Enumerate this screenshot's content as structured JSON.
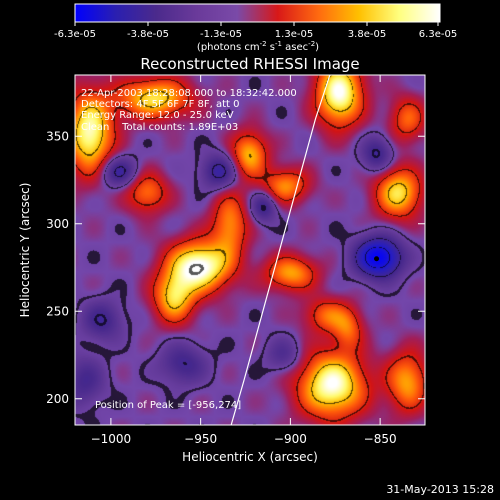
{
  "colorbar": {
    "tick_labels": [
      "-6.3e-05",
      "-3.8e-05",
      "-1.3e-05",
      "1.3e-05",
      "3.8e-05",
      "6.3e-05"
    ],
    "range": [
      -6.3e-05,
      6.3e-05
    ],
    "units_line": "(photons cm",
    "units_sup1": "-2",
    "units_mid": " s",
    "units_sup2": "-1",
    "units_end": " asec",
    "units_sup3": "-2",
    "units_close": ")",
    "colormap": [
      "#0000ff",
      "#2a1fb0",
      "#4b2a8c",
      "#6a3a9a",
      "#7a4aa8",
      "#d81818",
      "#ff6a10",
      "#ffc000",
      "#ffff80",
      "#ffffff"
    ]
  },
  "title": "Reconstructed RHESSI Image",
  "info": {
    "line1": "22-Apr-2003 18:28:08.000 to 18:32:42.000",
    "line2": "Detectors: 4F 5F 6F 7F 8F, att 0",
    "line3": "Energy Range: 12.0 - 25.0 keV",
    "line4": "Clean    Total counts: 1.89E+03"
  },
  "peak_label": "Position of Peak = [-956,274]",
  "footer_date": "31-May-2013 15:28",
  "chart_data": {
    "type": "heatmap",
    "title": "Reconstructed RHESSI Image",
    "xlabel": "Heliocentric X (arcsec)",
    "ylabel": "Heliocentric Y (arcsec)",
    "xlim": [
      -1020,
      -825
    ],
    "ylim": [
      185,
      385
    ],
    "x_ticks": [
      -1000,
      -950,
      -900,
      -850
    ],
    "x_tick_labels": [
      "−1000",
      "−950",
      "−900",
      "−850"
    ],
    "y_ticks": [
      200,
      250,
      300,
      350
    ],
    "y_tick_labels": [
      "200",
      "250",
      "300",
      "350"
    ],
    "peak_position": [
      -956,
      274
    ],
    "limb_curve": [
      [
        -933,
        185
      ],
      [
        -926,
        210
      ],
      [
        -918,
        240
      ],
      [
        -910,
        270
      ],
      [
        -902,
        300
      ],
      [
        -894,
        330
      ],
      [
        -886,
        360
      ],
      [
        -878,
        385
      ]
    ],
    "marker_point": [
      -852,
      280
    ],
    "sources": [
      {
        "x": -951,
        "y": 276,
        "v": 1.0,
        "sx": 12,
        "sy": 10
      },
      {
        "x": -965,
        "y": 258,
        "v": 0.7,
        "sx": 8,
        "sy": 10
      },
      {
        "x": -1012,
        "y": 352,
        "v": 0.9,
        "sx": 9,
        "sy": 16
      },
      {
        "x": -976,
        "y": 372,
        "v": 0.75,
        "sx": 14,
        "sy": 8
      },
      {
        "x": -903,
        "y": 322,
        "v": 0.55,
        "sx": 9,
        "sy": 7
      },
      {
        "x": -923,
        "y": 340,
        "v": 0.65,
        "sx": 7,
        "sy": 9
      },
      {
        "x": -873,
        "y": 375,
        "v": 0.95,
        "sx": 9,
        "sy": 13
      },
      {
        "x": -840,
        "y": 318,
        "v": 0.75,
        "sx": 9,
        "sy": 10
      },
      {
        "x": -835,
        "y": 360,
        "v": 0.45,
        "sx": 7,
        "sy": 9
      },
      {
        "x": -900,
        "y": 272,
        "v": 0.6,
        "sx": 10,
        "sy": 7
      },
      {
        "x": -880,
        "y": 248,
        "v": 0.45,
        "sx": 9,
        "sy": 7
      },
      {
        "x": -934,
        "y": 300,
        "v": 0.55,
        "sx": 7,
        "sy": 13
      },
      {
        "x": -980,
        "y": 318,
        "v": 0.5,
        "sx": 8,
        "sy": 8
      },
      {
        "x": -877,
        "y": 208,
        "v": 0.95,
        "sx": 13,
        "sy": 13
      },
      {
        "x": -835,
        "y": 210,
        "v": 0.6,
        "sx": 8,
        "sy": 12
      },
      {
        "x": -868,
        "y": 240,
        "v": 0.4,
        "sx": 6,
        "sy": 8
      },
      {
        "x": -1005,
        "y": 245,
        "v": -0.4,
        "sx": 8,
        "sy": 8
      },
      {
        "x": -1015,
        "y": 210,
        "v": -0.35,
        "sx": 8,
        "sy": 10
      },
      {
        "x": -996,
        "y": 330,
        "v": -0.5,
        "sx": 7,
        "sy": 6
      },
      {
        "x": -940,
        "y": 330,
        "v": -0.5,
        "sx": 7,
        "sy": 7
      },
      {
        "x": -960,
        "y": 220,
        "v": -0.4,
        "sx": 9,
        "sy": 8
      },
      {
        "x": -851,
        "y": 281,
        "v": -1.0,
        "sx": 9,
        "sy": 8
      },
      {
        "x": -852,
        "y": 340,
        "v": -0.45,
        "sx": 6,
        "sy": 7
      },
      {
        "x": -904,
        "y": 225,
        "v": -0.3,
        "sx": 7,
        "sy": 7
      },
      {
        "x": -915,
        "y": 310,
        "v": -0.45,
        "sx": 5,
        "sy": 6
      }
    ]
  }
}
